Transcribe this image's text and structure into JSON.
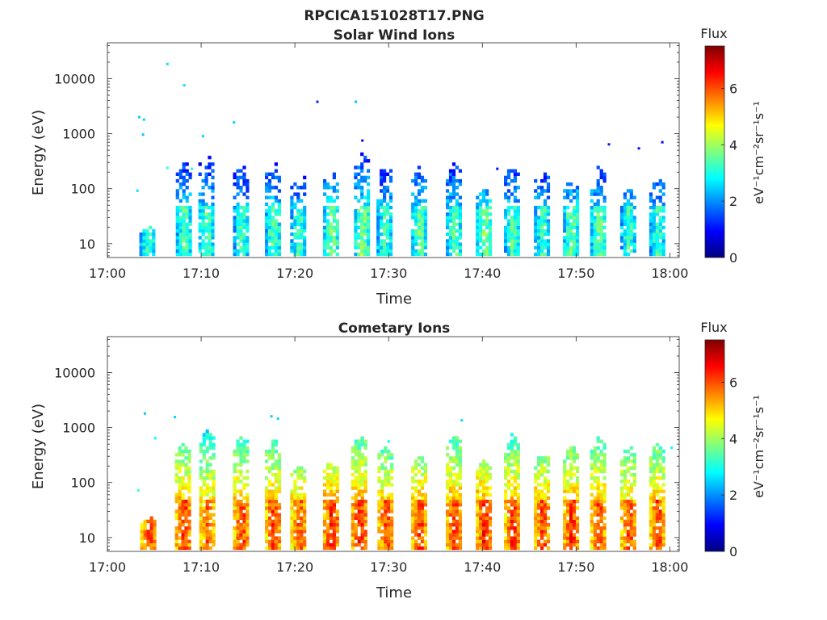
{
  "figure_title": "RPCICA151028T17.PNG",
  "colormap": [
    "#00007f",
    "#0000ff",
    "#007fff",
    "#00ffff",
    "#7fff7f",
    "#ffff00",
    "#ff7f00",
    "#ff0000",
    "#7f0000"
  ],
  "chart_data": [
    {
      "type": "heatmap",
      "title": "Solar Wind Ions",
      "xlabel": "Time",
      "ylabel": "Energy (eV)",
      "x_ticks": [
        "17:00",
        "17:10",
        "17:20",
        "17:30",
        "17:40",
        "17:50",
        "18:00"
      ],
      "x_range_min": [
        0,
        61
      ],
      "y_scale": "log",
      "y_range_eV": [
        5.6,
        45000
      ],
      "y_ticks": [
        10,
        100,
        1000,
        10000
      ],
      "y_tick_labels": [
        "10",
        "100",
        "1000",
        "10000"
      ],
      "colorbar": {
        "title": "Flux",
        "label": "eV⁻¹cm⁻²sr⁻¹s⁻¹",
        "range": [
          0,
          7.5
        ],
        "ticks": [
          0,
          2,
          4,
          6
        ],
        "tick_labels": [
          "0",
          "2",
          "4",
          "6"
        ]
      },
      "bursts": [
        {
          "t": 4.2,
          "emax": 22,
          "peak": 4.0,
          "sparse": 0.1
        },
        {
          "t": 8.1,
          "emax": 300,
          "peak": 4.2,
          "sparse": 0.55
        },
        {
          "t": 10.5,
          "emax": 420,
          "peak": 4.2,
          "sparse": 0.5
        },
        {
          "t": 14.2,
          "emax": 300,
          "peak": 4.0,
          "sparse": 0.5
        },
        {
          "t": 17.6,
          "emax": 300,
          "peak": 4.2,
          "sparse": 0.5
        },
        {
          "t": 20.3,
          "emax": 200,
          "peak": 4.0,
          "sparse": 0.55
        },
        {
          "t": 23.8,
          "emax": 200,
          "peak": 4.4,
          "sparse": 0.5
        },
        {
          "t": 27.1,
          "emax": 420,
          "peak": 4.5,
          "sparse": 0.5
        },
        {
          "t": 29.5,
          "emax": 280,
          "peak": 4.0,
          "sparse": 0.55
        },
        {
          "t": 33.2,
          "emax": 250,
          "peak": 4.3,
          "sparse": 0.5
        },
        {
          "t": 36.9,
          "emax": 300,
          "peak": 4.2,
          "sparse": 0.5
        },
        {
          "t": 40.1,
          "emax": 100,
          "peak": 4.4,
          "sparse": 0.45
        },
        {
          "t": 43.1,
          "emax": 250,
          "peak": 4.1,
          "sparse": 0.5
        },
        {
          "t": 46.3,
          "emax": 200,
          "peak": 4.0,
          "sparse": 0.55
        },
        {
          "t": 49.4,
          "emax": 150,
          "peak": 4.3,
          "sparse": 0.5
        },
        {
          "t": 52.3,
          "emax": 250,
          "peak": 4.2,
          "sparse": 0.5
        },
        {
          "t": 55.5,
          "emax": 100,
          "peak": 4.0,
          "sparse": 0.5
        },
        {
          "t": 58.6,
          "emax": 150,
          "peak": 4.0,
          "sparse": 0.5
        }
      ],
      "scattered_points": [
        {
          "t": 3.4,
          "e": 2000,
          "v": 2.5
        },
        {
          "t": 3.9,
          "e": 1800,
          "v": 2.5
        },
        {
          "t": 3.8,
          "e": 960,
          "v": 2.4
        },
        {
          "t": 3.2,
          "e": 92,
          "v": 2.6
        },
        {
          "t": 6.4,
          "e": 18500,
          "v": 2.6
        },
        {
          "t": 8.2,
          "e": 7600,
          "v": 2.6
        },
        {
          "t": 10.2,
          "e": 900,
          "v": 2.5
        },
        {
          "t": 13.5,
          "e": 1600,
          "v": 2.5
        },
        {
          "t": 22.4,
          "e": 3800,
          "v": 1.2
        },
        {
          "t": 26.5,
          "e": 3800,
          "v": 2.4
        },
        {
          "t": 27.2,
          "e": 750,
          "v": 1.0
        },
        {
          "t": 41.6,
          "e": 230,
          "v": 1.0
        },
        {
          "t": 53.5,
          "e": 640,
          "v": 1.1
        },
        {
          "t": 56.7,
          "e": 540,
          "v": 1.0
        },
        {
          "t": 59.2,
          "e": 700,
          "v": 1.0
        },
        {
          "t": 9.0,
          "e": 230,
          "v": 3.0
        },
        {
          "t": 6.4,
          "e": 240,
          "v": 3.2
        }
      ]
    },
    {
      "type": "heatmap",
      "title": "Cometary Ions",
      "xlabel": "Time",
      "ylabel": "Energy (eV)",
      "x_ticks": [
        "17:00",
        "17:10",
        "17:20",
        "17:30",
        "17:40",
        "17:50",
        "18:00"
      ],
      "x_range_min": [
        0,
        61
      ],
      "y_scale": "log",
      "y_range_eV": [
        5.6,
        45000
      ],
      "y_ticks": [
        10,
        100,
        1000,
        10000
      ],
      "y_tick_labels": [
        "10",
        "100",
        "1000",
        "10000"
      ],
      "colorbar": {
        "title": "Flux",
        "label": "eV⁻¹cm⁻²sr⁻¹s⁻¹",
        "range": [
          0,
          7.5
        ],
        "ticks": [
          0,
          2,
          4,
          6
        ],
        "tick_labels": [
          "0",
          "2",
          "4",
          "6"
        ]
      },
      "bursts": [
        {
          "t": 4.3,
          "emax": 25,
          "peak": 6.8,
          "sparse": 0.1
        },
        {
          "t": 8.0,
          "emax": 500,
          "peak": 6.9,
          "sparse": 0.3
        },
        {
          "t": 10.6,
          "emax": 900,
          "peak": 6.6,
          "sparse": 0.3
        },
        {
          "t": 14.2,
          "emax": 700,
          "peak": 6.8,
          "sparse": 0.3
        },
        {
          "t": 17.6,
          "emax": 600,
          "peak": 6.8,
          "sparse": 0.3
        },
        {
          "t": 20.3,
          "emax": 200,
          "peak": 6.7,
          "sparse": 0.3
        },
        {
          "t": 23.8,
          "emax": 250,
          "peak": 7.0,
          "sparse": 0.3
        },
        {
          "t": 26.8,
          "emax": 700,
          "peak": 7.0,
          "sparse": 0.3
        },
        {
          "t": 29.6,
          "emax": 500,
          "peak": 6.7,
          "sparse": 0.3
        },
        {
          "t": 33.2,
          "emax": 300,
          "peak": 6.9,
          "sparse": 0.3
        },
        {
          "t": 36.9,
          "emax": 700,
          "peak": 6.9,
          "sparse": 0.3
        },
        {
          "t": 40.1,
          "emax": 250,
          "peak": 7.0,
          "sparse": 0.3
        },
        {
          "t": 43.1,
          "emax": 750,
          "peak": 6.9,
          "sparse": 0.3
        },
        {
          "t": 46.3,
          "emax": 350,
          "peak": 6.8,
          "sparse": 0.3
        },
        {
          "t": 49.4,
          "emax": 450,
          "peak": 6.9,
          "sparse": 0.3
        },
        {
          "t": 52.3,
          "emax": 650,
          "peak": 6.8,
          "sparse": 0.3
        },
        {
          "t": 55.5,
          "emax": 450,
          "peak": 6.7,
          "sparse": 0.3
        },
        {
          "t": 58.6,
          "emax": 500,
          "peak": 6.8,
          "sparse": 0.3
        }
      ],
      "scattered_points": [
        {
          "t": 4.0,
          "e": 1800,
          "v": 2.4
        },
        {
          "t": 7.2,
          "e": 1550,
          "v": 2.5
        },
        {
          "t": 17.5,
          "e": 1600,
          "v": 2.5
        },
        {
          "t": 18.2,
          "e": 1450,
          "v": 2.5
        },
        {
          "t": 37.8,
          "e": 1350,
          "v": 2.6
        },
        {
          "t": 3.3,
          "e": 72,
          "v": 3.3
        },
        {
          "t": 5.1,
          "e": 640,
          "v": 2.8
        },
        {
          "t": 30.0,
          "e": 560,
          "v": 2.8
        },
        {
          "t": 60.2,
          "e": 430,
          "v": 2.8
        }
      ]
    }
  ]
}
